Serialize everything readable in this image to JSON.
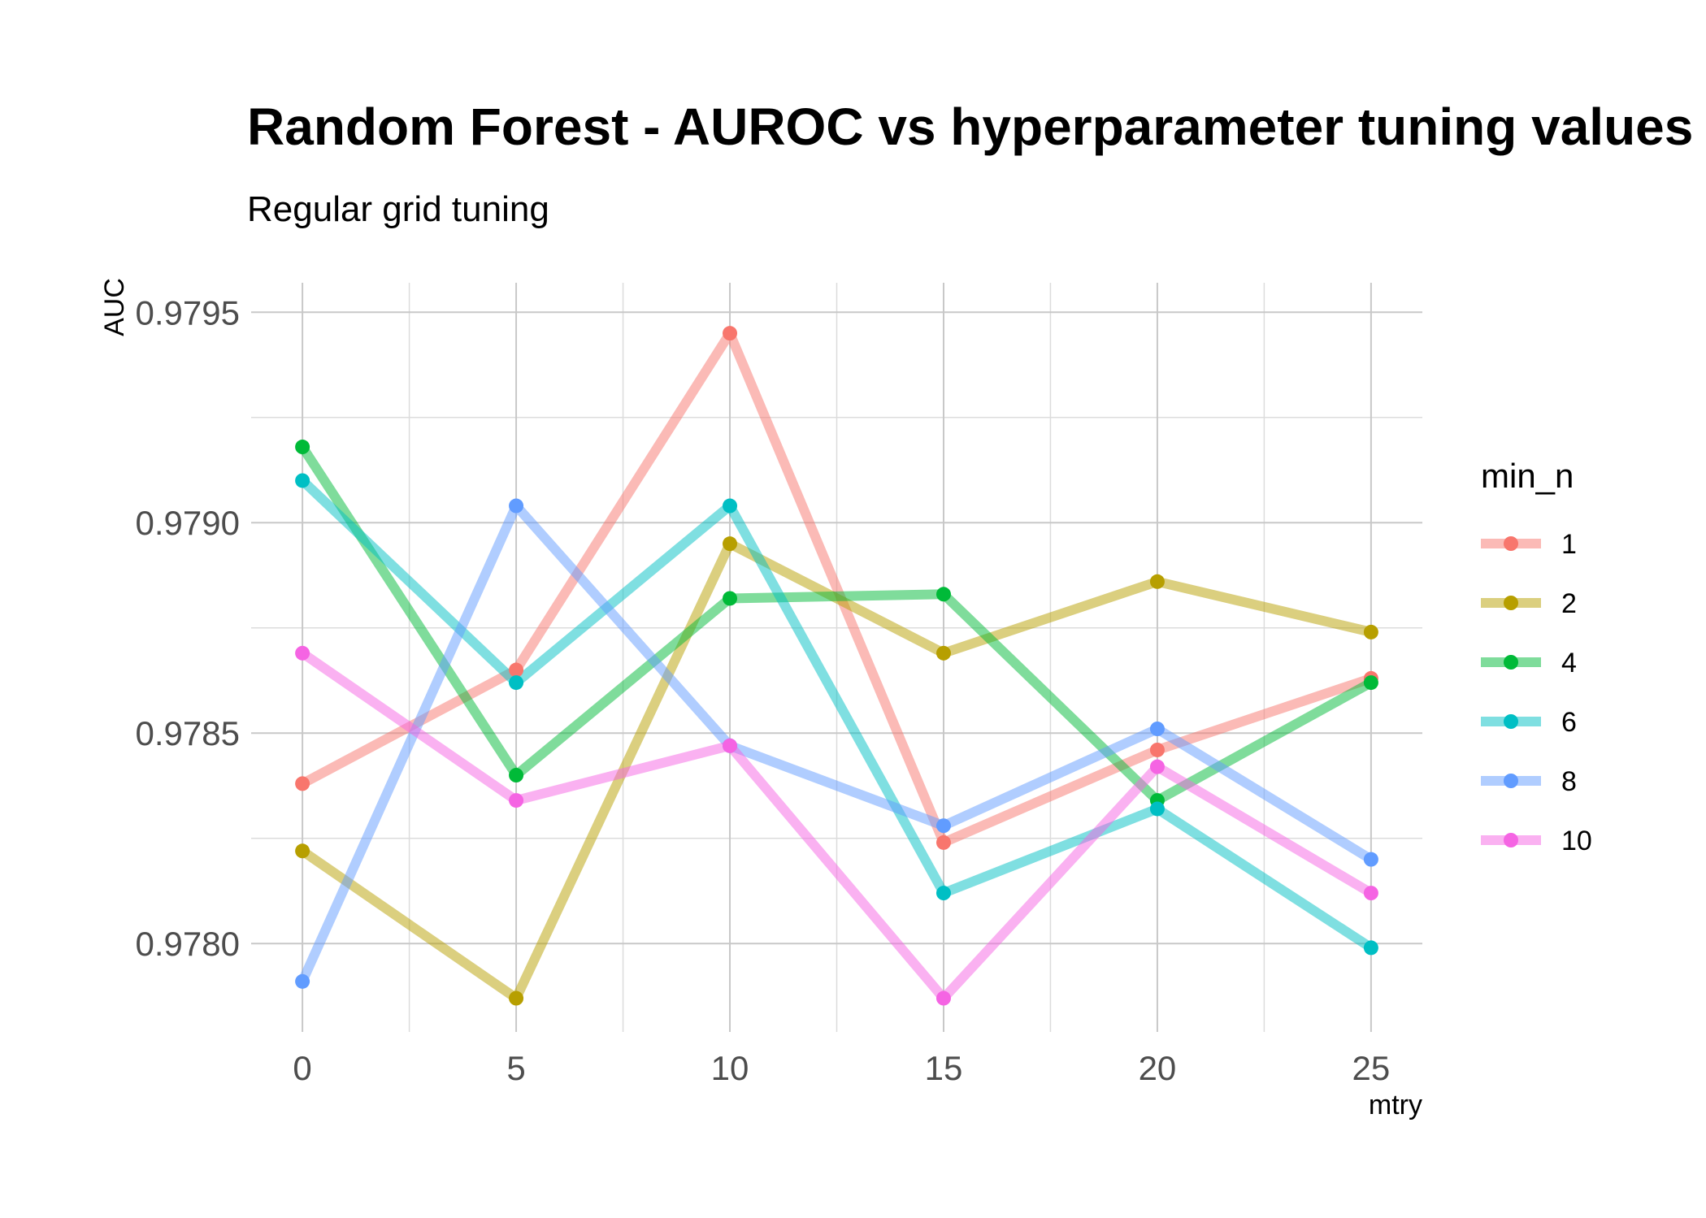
{
  "chart_data": {
    "type": "line",
    "title": "Random Forest - AUROC vs hyperparameter tuning values",
    "subtitle": "Regular grid tuning",
    "xlabel": "mtry",
    "ylabel": "AUC",
    "xlim": [
      -1.2,
      26.2
    ],
    "ylim": [
      0.97779,
      0.97957
    ],
    "x_ticks": [
      0,
      5,
      10,
      15,
      20,
      25
    ],
    "x_tick_labels": [
      "0",
      "5",
      "10",
      "15",
      "20",
      "25"
    ],
    "y_ticks": [
      0.978,
      0.9785,
      0.979,
      0.9795
    ],
    "y_tick_labels": [
      "0.9780",
      "0.9785",
      "0.9790",
      "0.9795"
    ],
    "grid": true,
    "legend": {
      "title": "min_n",
      "placement": "right"
    },
    "x": [
      0,
      5,
      10,
      15,
      20,
      25
    ],
    "series": [
      {
        "name": "1",
        "color": "#F8766D",
        "values": [
          0.97838,
          0.97865,
          0.97945,
          0.97824,
          0.97846,
          0.97863
        ]
      },
      {
        "name": "2",
        "color": "#B79F00",
        "values": [
          0.97822,
          0.97787,
          0.97895,
          0.97869,
          0.97886,
          0.97874
        ]
      },
      {
        "name": "4",
        "color": "#00BA38",
        "values": [
          0.97918,
          0.9784,
          0.97882,
          0.97883,
          0.97834,
          0.97862
        ]
      },
      {
        "name": "6",
        "color": "#00BFC4",
        "values": [
          0.9791,
          0.97862,
          0.97904,
          0.97812,
          0.97832,
          0.97799
        ]
      },
      {
        "name": "8",
        "color": "#619CFF",
        "values": [
          0.97791,
          0.97904,
          0.97847,
          0.97828,
          0.97851,
          0.9782
        ]
      },
      {
        "name": "10",
        "color": "#F564E3",
        "values": [
          0.97869,
          0.97834,
          0.97847,
          0.97787,
          0.97842,
          0.97812
        ]
      }
    ]
  }
}
